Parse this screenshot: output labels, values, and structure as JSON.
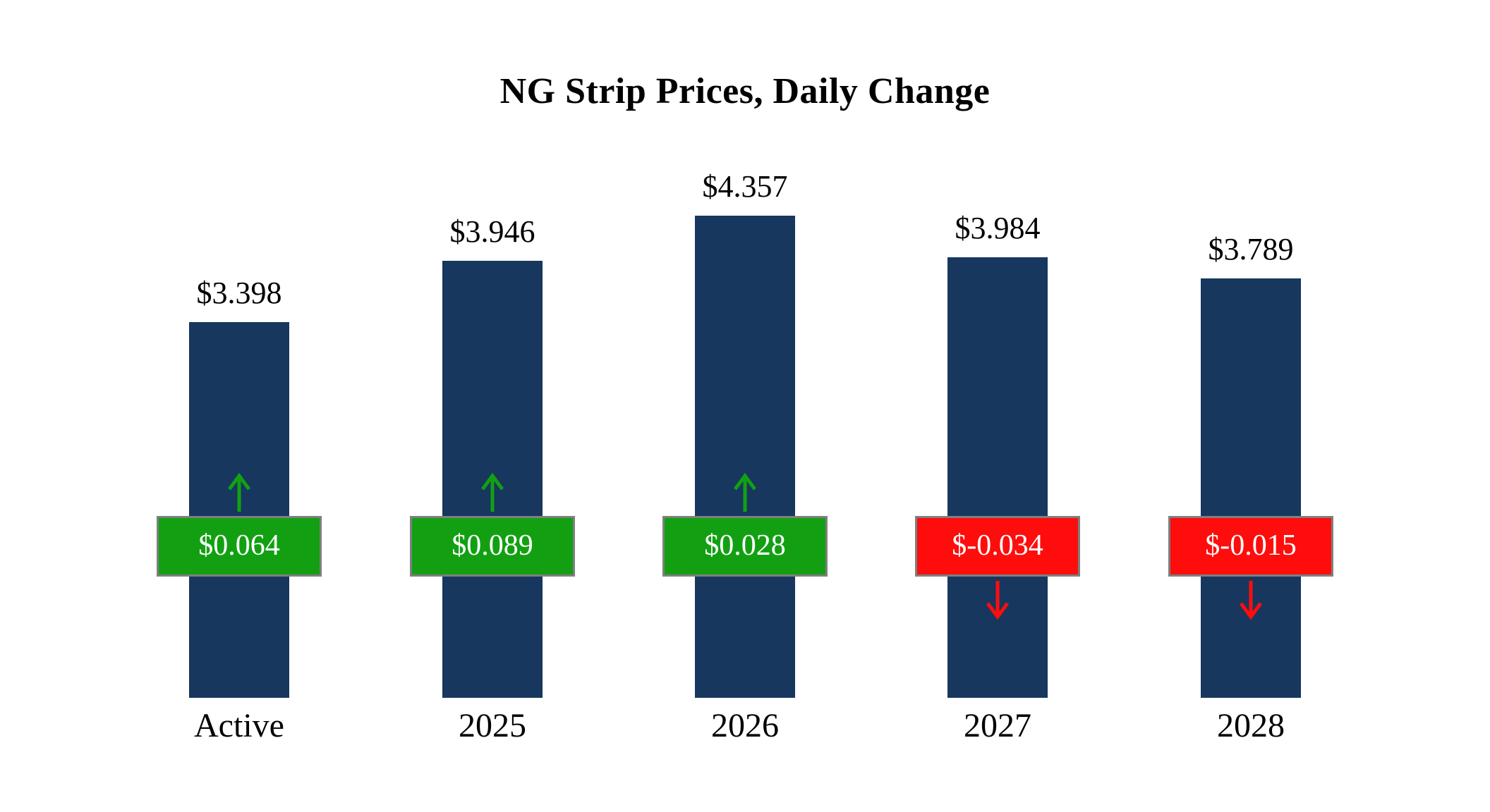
{
  "chart_data": {
    "type": "bar",
    "title": "NG Strip Prices, Daily Change",
    "categories": [
      "Active",
      "2025",
      "2026",
      "2027",
      "2028"
    ],
    "series": [
      {
        "name": "Strip Price",
        "values": [
          3.398,
          3.946,
          4.357,
          3.984,
          3.789
        ]
      },
      {
        "name": "Daily Change",
        "values": [
          0.064,
          0.089,
          0.028,
          -0.034,
          -0.015
        ]
      }
    ],
    "price_labels": [
      "$3.398",
      "$3.946",
      "$4.357",
      "$3.984",
      "$3.789"
    ],
    "change_labels": [
      "$0.064",
      "$0.089",
      "$0.028",
      "$-0.034",
      "$-0.015"
    ],
    "colors": {
      "bar": "#17375E",
      "positive": "#12A012",
      "negative": "#FF0D0D",
      "badge_border": "#7F7F7F",
      "text": "#000000",
      "badge_text": "#FFFFFF"
    },
    "ylim": [
      0,
      4.357
    ],
    "grid": false,
    "legend": "none",
    "xlabel": "",
    "ylabel": ""
  }
}
